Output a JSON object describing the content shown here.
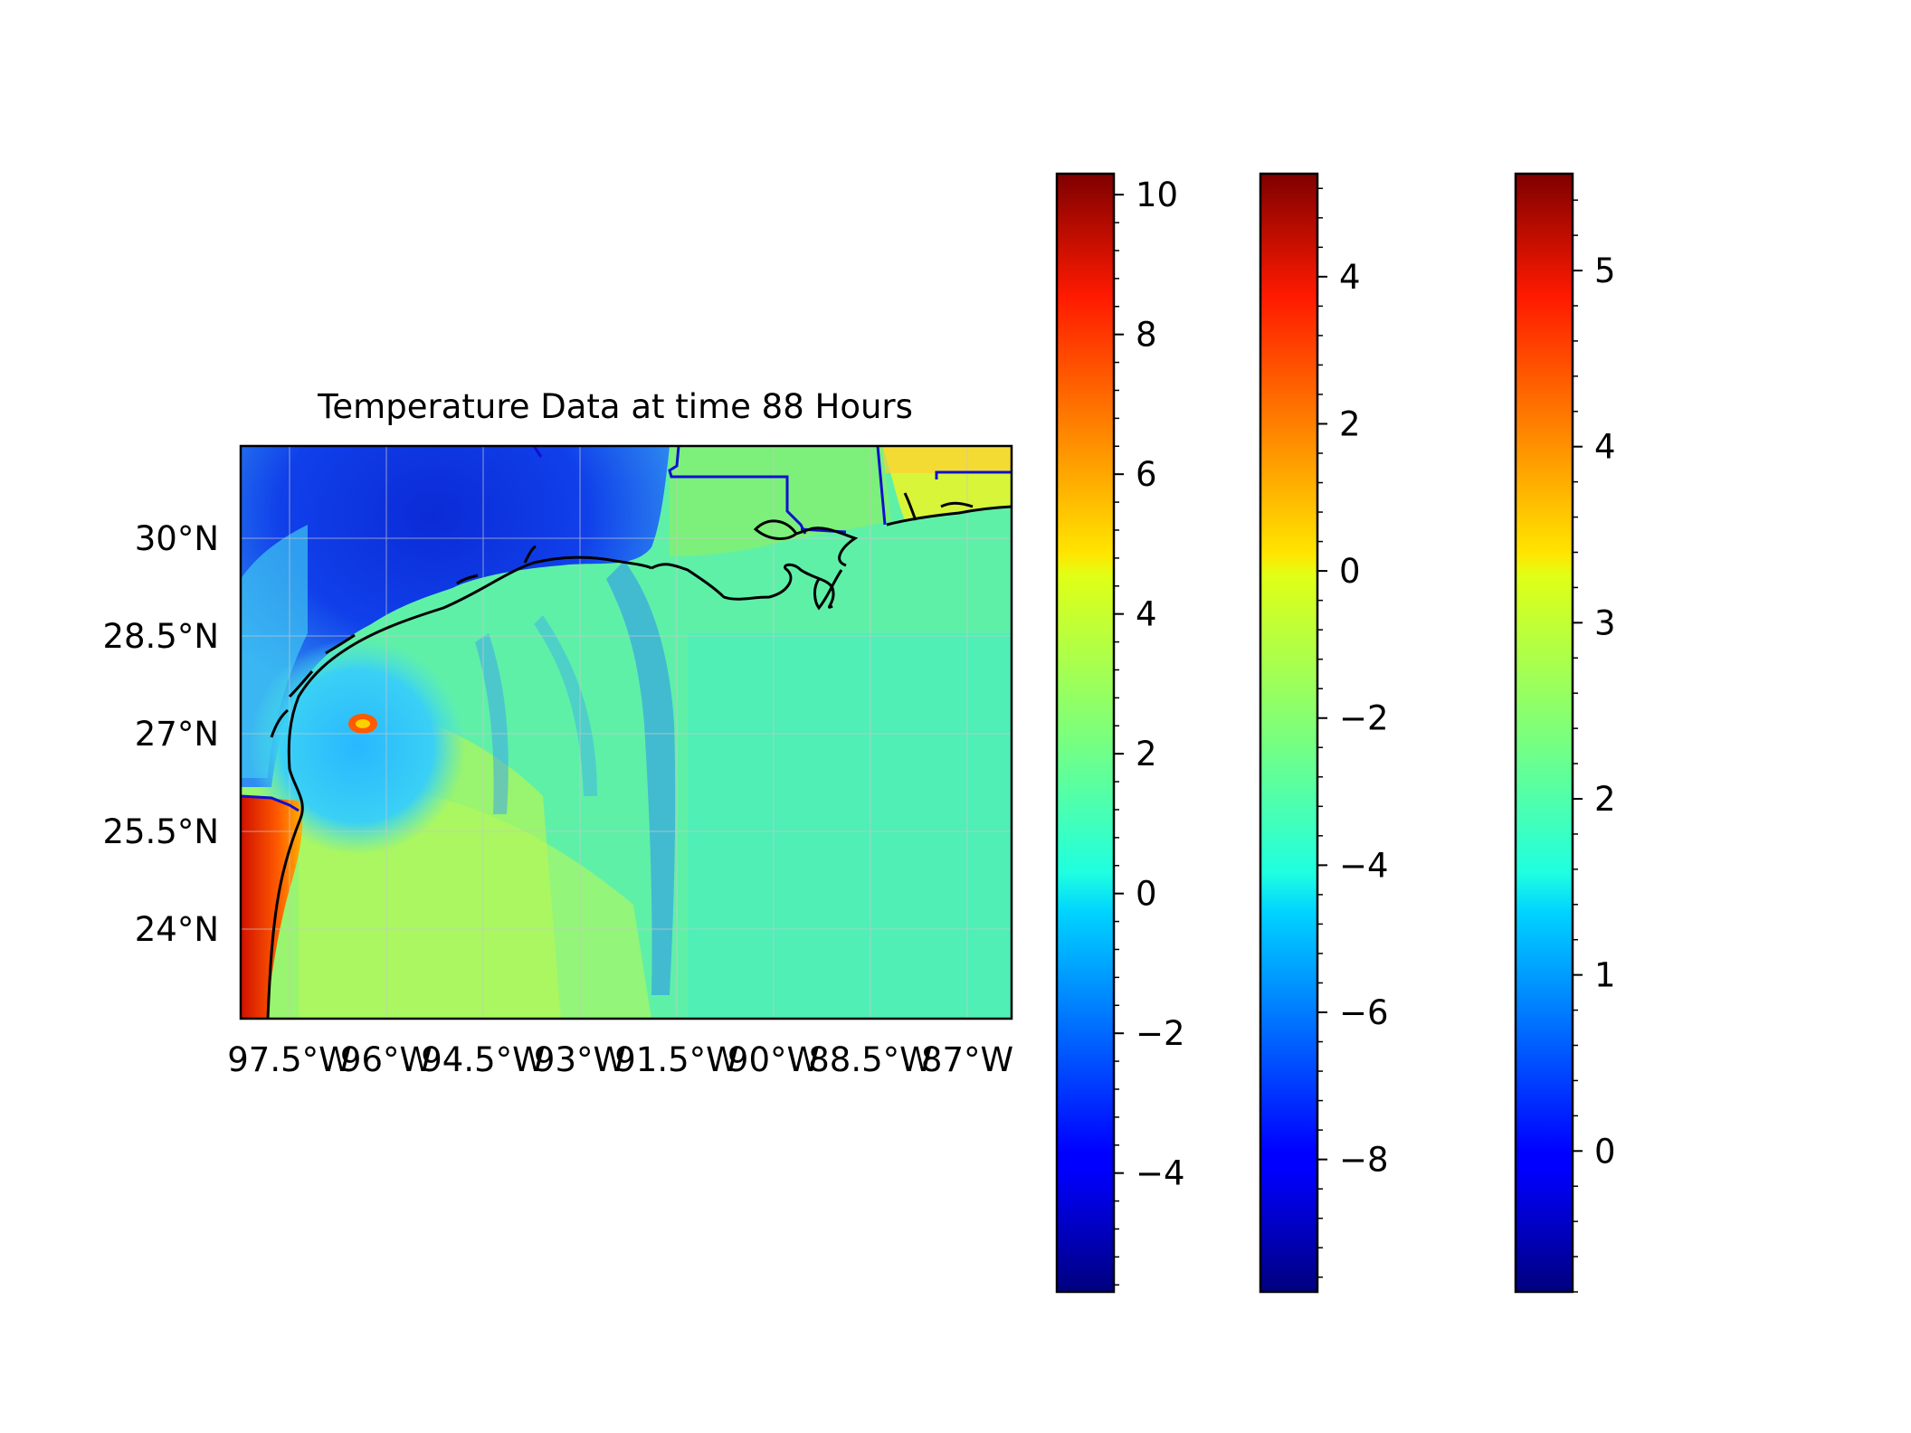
{
  "title": "Temperature Data at time 88 Hours",
  "map": {
    "lat_ticks": [
      "30°N",
      "28.5°N",
      "27°N",
      "25.5°N",
      "24°N"
    ],
    "lon_ticks": [
      "97.5°W",
      "96°W",
      "94.5°W",
      "93°W",
      "91.5°W",
      "90°W",
      "88.5°W",
      "87°W"
    ],
    "lon_range": [
      -97.5,
      -86.0
    ],
    "lat_range": [
      23.0,
      31.0
    ],
    "colormap": "jet"
  },
  "chart_data": {
    "type": "heatmap",
    "title": "Temperature Data at time 88 Hours",
    "xlabel": "",
    "ylabel": "",
    "colorbars": [
      {
        "colormap": "jet",
        "range": [
          -5.7,
          10.3
        ],
        "ticks": [
          10,
          8,
          6,
          4,
          2,
          0,
          -2,
          -4
        ],
        "tick_labels": [
          "10",
          "8",
          "6",
          "4",
          "2",
          "0",
          "−2",
          "−4"
        ]
      },
      {
        "colormap": "jet",
        "range": [
          -9.8,
          5.4
        ],
        "ticks": [
          4,
          2,
          0,
          -2,
          -4,
          -6,
          -8
        ],
        "tick_labels": [
          "4",
          "2",
          "0",
          "−2",
          "−4",
          "−6",
          "−8"
        ]
      },
      {
        "colormap": "jet",
        "range": [
          -0.8,
          5.55
        ],
        "ticks": [
          5,
          4,
          3,
          2,
          1,
          0
        ],
        "tick_labels": [
          "5",
          "4",
          "3",
          "2",
          "1",
          "0"
        ]
      }
    ]
  }
}
